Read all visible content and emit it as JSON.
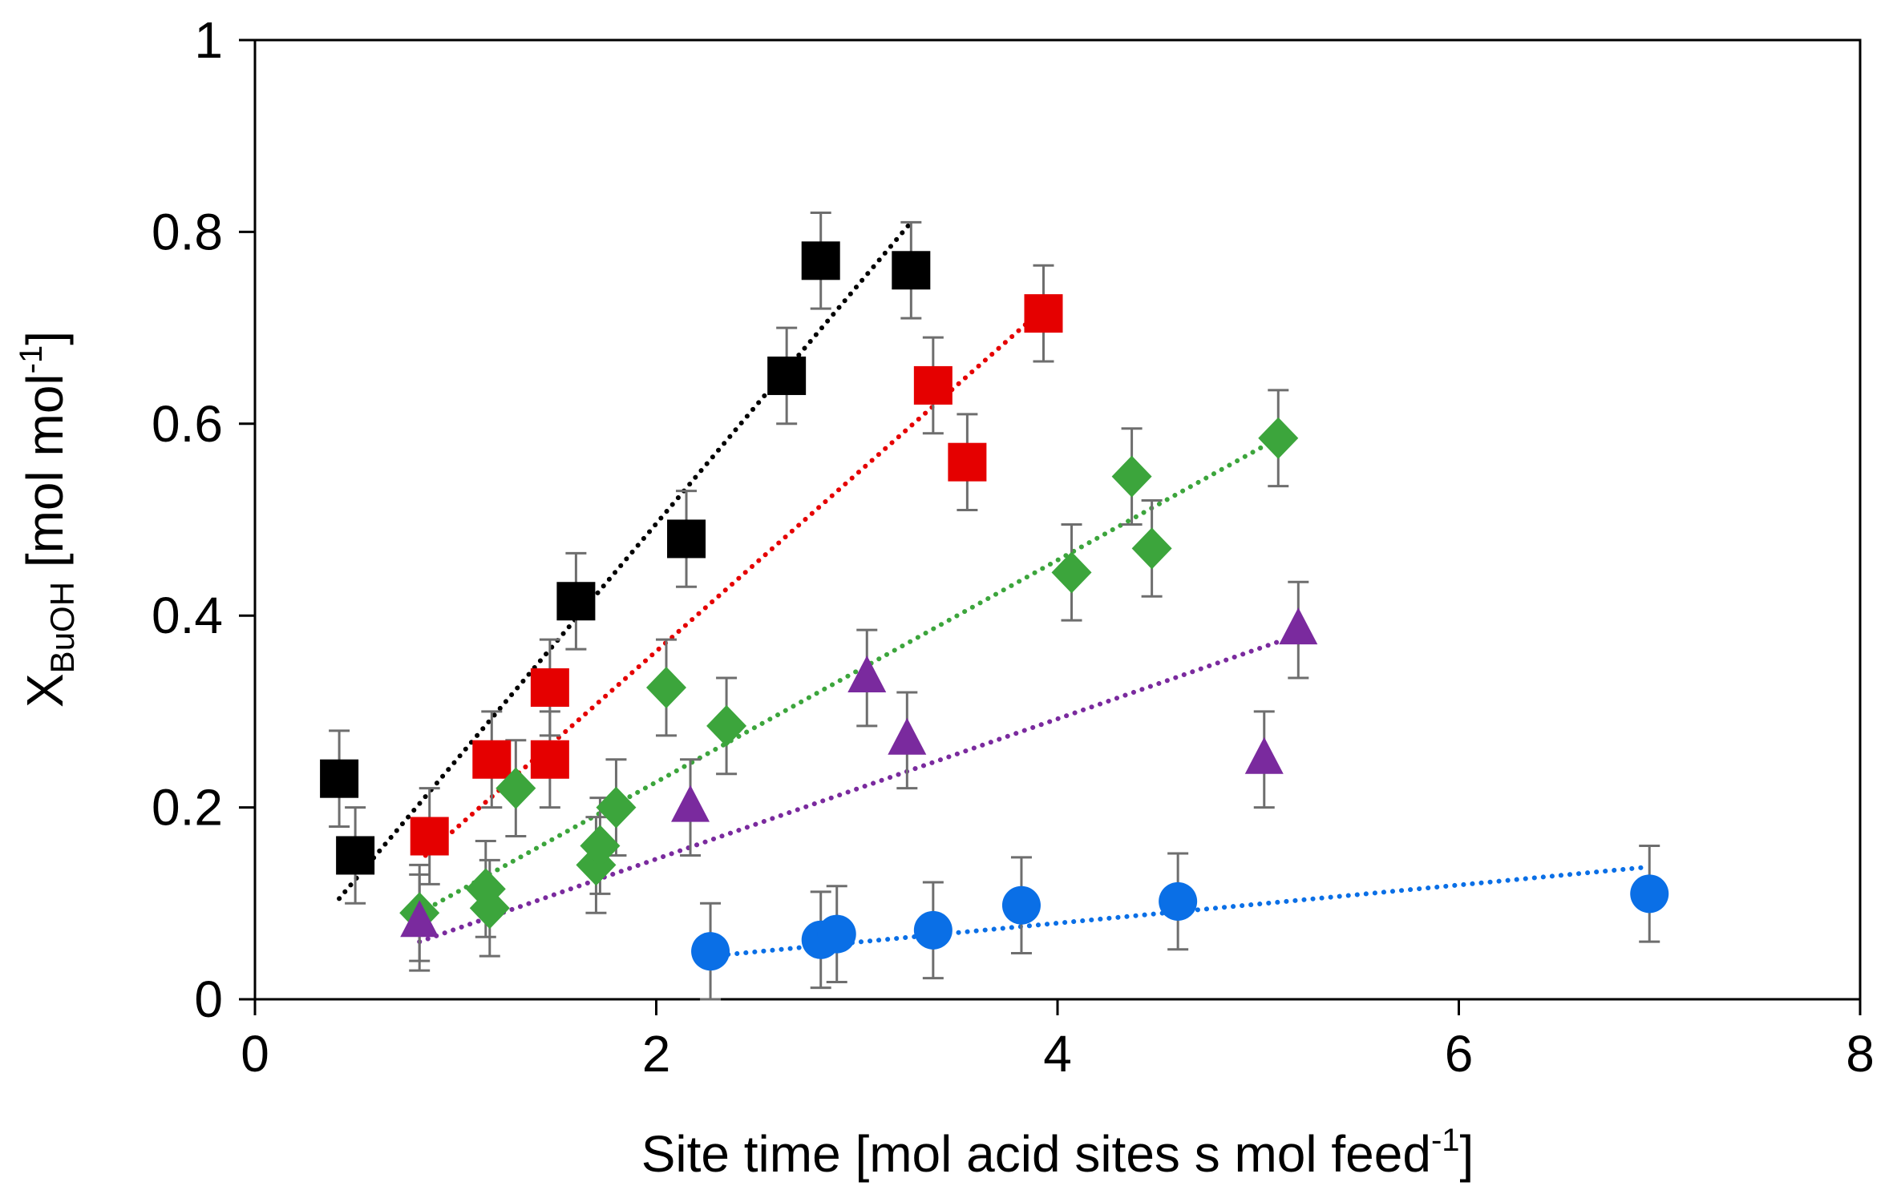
{
  "chart_data": {
    "type": "scatter",
    "title": "",
    "xlabel": {
      "main": "Site time [mol acid sites s mol feed",
      "superscript": "-1",
      "closing": "]"
    },
    "ylabel": {
      "main": "X",
      "subscript": "BuOH",
      "units": " [mol mol",
      "superscript": "-1",
      "closing": "]"
    },
    "xlim": [
      0,
      8
    ],
    "ylim": [
      0,
      1
    ],
    "xticks": [
      0,
      2,
      4,
      6,
      8
    ],
    "xtick_labels": [
      "0",
      "2",
      "4",
      "6",
      "8"
    ],
    "yticks": [
      0,
      0.2,
      0.4,
      0.6,
      0.8,
      1
    ],
    "ytick_labels": [
      "0",
      "0.2",
      "0.4",
      "0.6",
      "0.8",
      "1"
    ],
    "grid": false,
    "legend": "none",
    "series": [
      {
        "name": "black-squares",
        "marker": "square",
        "color": "#000000",
        "error": 0.05,
        "x": [
          0.42,
          0.5,
          1.6,
          2.15,
          2.65,
          2.82,
          3.27
        ],
        "y": [
          0.23,
          0.15,
          0.415,
          0.48,
          0.65,
          0.77,
          0.76
        ],
        "trend": {
          "x": [
            0.42,
            3.27
          ],
          "y": [
            0.105,
            0.81
          ]
        }
      },
      {
        "name": "red-squares",
        "marker": "square",
        "color": "#e50000",
        "error": 0.05,
        "x": [
          0.87,
          1.18,
          1.47,
          1.47,
          3.38,
          3.55,
          3.93
        ],
        "y": [
          0.17,
          0.25,
          0.325,
          0.25,
          0.64,
          0.56,
          0.715
        ],
        "trend": {
          "x": [
            0.85,
            3.93
          ],
          "y": [
            0.15,
            0.72
          ]
        }
      },
      {
        "name": "green-diamonds",
        "marker": "diamond",
        "color": "#3ca53c",
        "error": 0.05,
        "x": [
          0.82,
          1.15,
          1.17,
          1.3,
          1.7,
          1.72,
          1.8,
          2.05,
          2.35,
          4.07,
          4.37,
          4.47,
          5.1
        ],
        "y": [
          0.09,
          0.115,
          0.095,
          0.22,
          0.14,
          0.16,
          0.2,
          0.325,
          0.285,
          0.445,
          0.545,
          0.47,
          0.585
        ],
        "trend": {
          "x": [
            0.82,
            5.1
          ],
          "y": [
            0.09,
            0.585
          ]
        }
      },
      {
        "name": "purple-triangles",
        "marker": "triangle",
        "color": "#7a2a9e",
        "error": 0.05,
        "x": [
          0.82,
          2.17,
          3.05,
          3.25,
          5.03,
          5.2
        ],
        "y": [
          0.08,
          0.2,
          0.335,
          0.27,
          0.25,
          0.385
        ],
        "trend": {
          "x": [
            0.82,
            5.2
          ],
          "y": [
            0.06,
            0.38
          ]
        }
      },
      {
        "name": "blue-circles",
        "marker": "circle",
        "color": "#0a6fe6",
        "error": 0.05,
        "x": [
          2.27,
          2.82,
          2.9,
          3.38,
          3.82,
          4.6,
          6.95
        ],
        "y": [
          0.05,
          0.062,
          0.068,
          0.072,
          0.098,
          0.102,
          0.11
        ],
        "trend": {
          "x": [
            2.27,
            6.95
          ],
          "y": [
            0.045,
            0.138
          ]
        }
      }
    ]
  }
}
